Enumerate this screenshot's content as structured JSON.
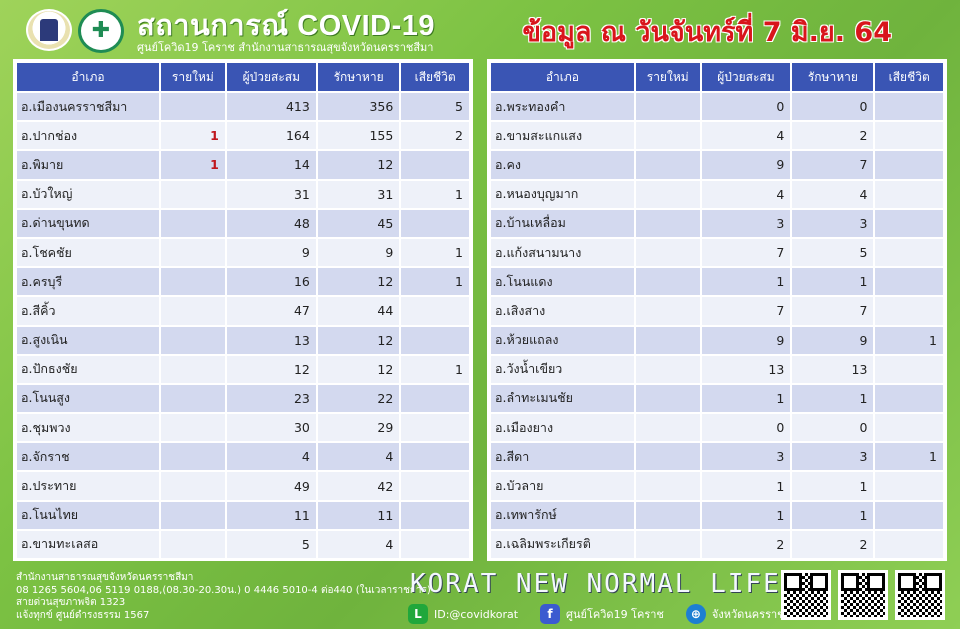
{
  "header": {
    "title": "สถานการณ์ COVID-19",
    "subtitle": "ศูนย์โควิด19 โคราช สำนักงานสาธารณสุขจังหวัดนครราชสีมา",
    "date": "ข้อมูล ณ วันจันทร์ที่ 7 มิ.ย. 64"
  },
  "columns": [
    "อำเภอ",
    "รายใหม่",
    "ผู้ป่วยสะสม",
    "รักษาหาย",
    "เสียชีวิต"
  ],
  "left_rows": [
    [
      "อ.เมืองนครราชสีมา",
      "",
      "413",
      "356",
      "5"
    ],
    [
      "อ.ปากช่อง",
      "1",
      "164",
      "155",
      "2"
    ],
    [
      "อ.พิมาย",
      "1",
      "14",
      "12",
      ""
    ],
    [
      "อ.บัวใหญ่",
      "",
      "31",
      "31",
      "1"
    ],
    [
      "อ.ด่านขุนทด",
      "",
      "48",
      "45",
      ""
    ],
    [
      "อ.โชคชัย",
      "",
      "9",
      "9",
      "1"
    ],
    [
      "อ.ครบุรี",
      "",
      "16",
      "12",
      "1"
    ],
    [
      "อ.สีคิ้ว",
      "",
      "47",
      "44",
      ""
    ],
    [
      "อ.สูงเนิน",
      "",
      "13",
      "12",
      ""
    ],
    [
      "อ.ปักธงชัย",
      "",
      "12",
      "12",
      "1"
    ],
    [
      "อ.โนนสูง",
      "",
      "23",
      "22",
      ""
    ],
    [
      "อ.ชุมพวง",
      "",
      "30",
      "29",
      ""
    ],
    [
      "อ.จักราช",
      "",
      "4",
      "4",
      ""
    ],
    [
      "อ.ประทาย",
      "",
      "49",
      "42",
      ""
    ],
    [
      "อ.โนนไทย",
      "",
      "11",
      "11",
      ""
    ],
    [
      "อ.ขามทะเลสอ",
      "",
      "5",
      "4",
      ""
    ]
  ],
  "right_rows": [
    [
      "อ.พระทองคำ",
      "",
      "0",
      "0",
      ""
    ],
    [
      "อ.ขามสะแกแสง",
      "",
      "4",
      "2",
      ""
    ],
    [
      "อ.คง",
      "",
      "9",
      "7",
      ""
    ],
    [
      "อ.หนองบุญมาก",
      "",
      "4",
      "4",
      ""
    ],
    [
      "อ.บ้านเหลื่อม",
      "",
      "3",
      "3",
      ""
    ],
    [
      "อ.แก้งสนามนาง",
      "",
      "7",
      "5",
      ""
    ],
    [
      "อ.โนนแดง",
      "",
      "1",
      "1",
      ""
    ],
    [
      "อ.เสิงสาง",
      "",
      "7",
      "7",
      ""
    ],
    [
      "อ.ห้วยแถลง",
      "",
      "9",
      "9",
      "1"
    ],
    [
      "อ.วังน้ำเขียว",
      "",
      "13",
      "13",
      ""
    ],
    [
      "อ.ลำทะเมนชัย",
      "",
      "1",
      "1",
      ""
    ],
    [
      "อ.เมืองยาง",
      "",
      "0",
      "0",
      ""
    ],
    [
      "อ.สีดา",
      "",
      "3",
      "3",
      "1"
    ],
    [
      "อ.บัวลาย",
      "",
      "1",
      "1",
      ""
    ],
    [
      "อ.เทพารักษ์",
      "",
      "1",
      "1",
      ""
    ],
    [
      "อ.เฉลิมพระเกียรติ",
      "",
      "2",
      "2",
      ""
    ]
  ],
  "footer": {
    "address_lines": [
      "สำนักงานสาธารณสุขจังหวัดนครราชสีมา",
      "08 1265 5604,06 5119 0188,(08.30-20.30น.) 0 4446 5010-4 ต่อ440 (ในเวลาราชการ)",
      "สายด่วนสุขภาพจิต 1323",
      "แจ้งทุกข์ ศูนย์ดำรงธรรม 1567"
    ],
    "slogan": "KORAT NEW NORMAL LIFE",
    "line_id": "ID:@covidkorat",
    "facebook": "ศูนย์โควิด19 โคราช",
    "website": "จังหวัดนครราชสีมา"
  },
  "colors": {
    "header_bg": "#3a55b4",
    "row_dark": "#d3d9ef",
    "row_light": "#eef1f9",
    "new_case": "#c0171e",
    "date": "#d8151b"
  }
}
